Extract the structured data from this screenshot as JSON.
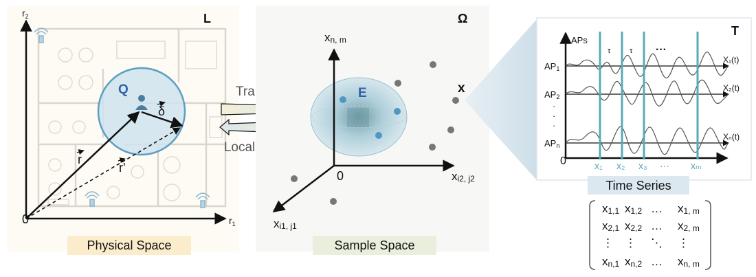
{
  "panels": {
    "physical": {
      "corner_label": "L",
      "axis_x": "r",
      "axis_x_sub": "1",
      "axis_y": "r",
      "axis_y_sub": "2",
      "origin": "0",
      "region": "Q",
      "vec_r": "r",
      "vec_r_prime": "r'",
      "vec_delta": "δ",
      "caption": "Physical Space"
    },
    "sample": {
      "corner_label": "Ω",
      "axis_z": "x",
      "axis_z_sub": "n, m",
      "axis_x": "x",
      "axis_x_sub": "i2, j2",
      "axis_y": "x",
      "axis_y_sub": "i1, j1",
      "origin": "0",
      "ellipsoid": "E",
      "point_label": "x",
      "caption": "Sample Space"
    },
    "series": {
      "corner_label": "T",
      "y_label": "APs",
      "ap1_main": "AP",
      "ap1_sub": "1",
      "ap2_main": "AP",
      "ap2_sub": "2",
      "apn_main": "AP",
      "apn_sub": "n",
      "x1t": "X₁(t)",
      "x2t": "X₂(t)",
      "xnt": "Xₙ(t)",
      "tau1": "τ",
      "tau2": "τ",
      "dots": "···",
      "vdots": "·",
      "origin": "0",
      "ticks": [
        "x₁",
        "x₂",
        "x₃",
        "···",
        "xₘ"
      ],
      "caption": "Time Series"
    }
  },
  "arrows": {
    "training": "Training",
    "localization": "Localization"
  },
  "matrix": {
    "rows": [
      [
        "x1,1",
        "x1,2",
        "…",
        "x1, m"
      ],
      [
        "x2,1",
        "x2,2",
        "…",
        "x2, m"
      ],
      [
        "⋮",
        "⋮",
        "⋱",
        "⋮"
      ],
      [
        "xn,1",
        "xn,2",
        "…",
        "xn, m"
      ]
    ],
    "cells": [
      [
        "x",
        "1,1",
        "x",
        "1,2",
        "…",
        "",
        "x",
        "1, m"
      ],
      [
        "x",
        "2,1",
        "x",
        "2,2",
        "…",
        "",
        "x",
        "2, m"
      ],
      [
        "⋮",
        "",
        "⋮",
        "",
        "⋱",
        "",
        "⋮",
        ""
      ],
      [
        "x",
        "n,1",
        "x",
        "n,2",
        "…",
        "",
        "x",
        "n, m"
      ]
    ]
  },
  "colors": {
    "circle_fill": "#cfe3ee",
    "circle_stroke": "#5a9fc0",
    "teal_line": "#5aaab8",
    "caption_physical_bg": "#fbeccc",
    "caption_sample_bg": "#e9eedd",
    "caption_series_bg": "#dbe8ef",
    "point_gray": "#777777",
    "point_blue": "#4e98c3"
  }
}
